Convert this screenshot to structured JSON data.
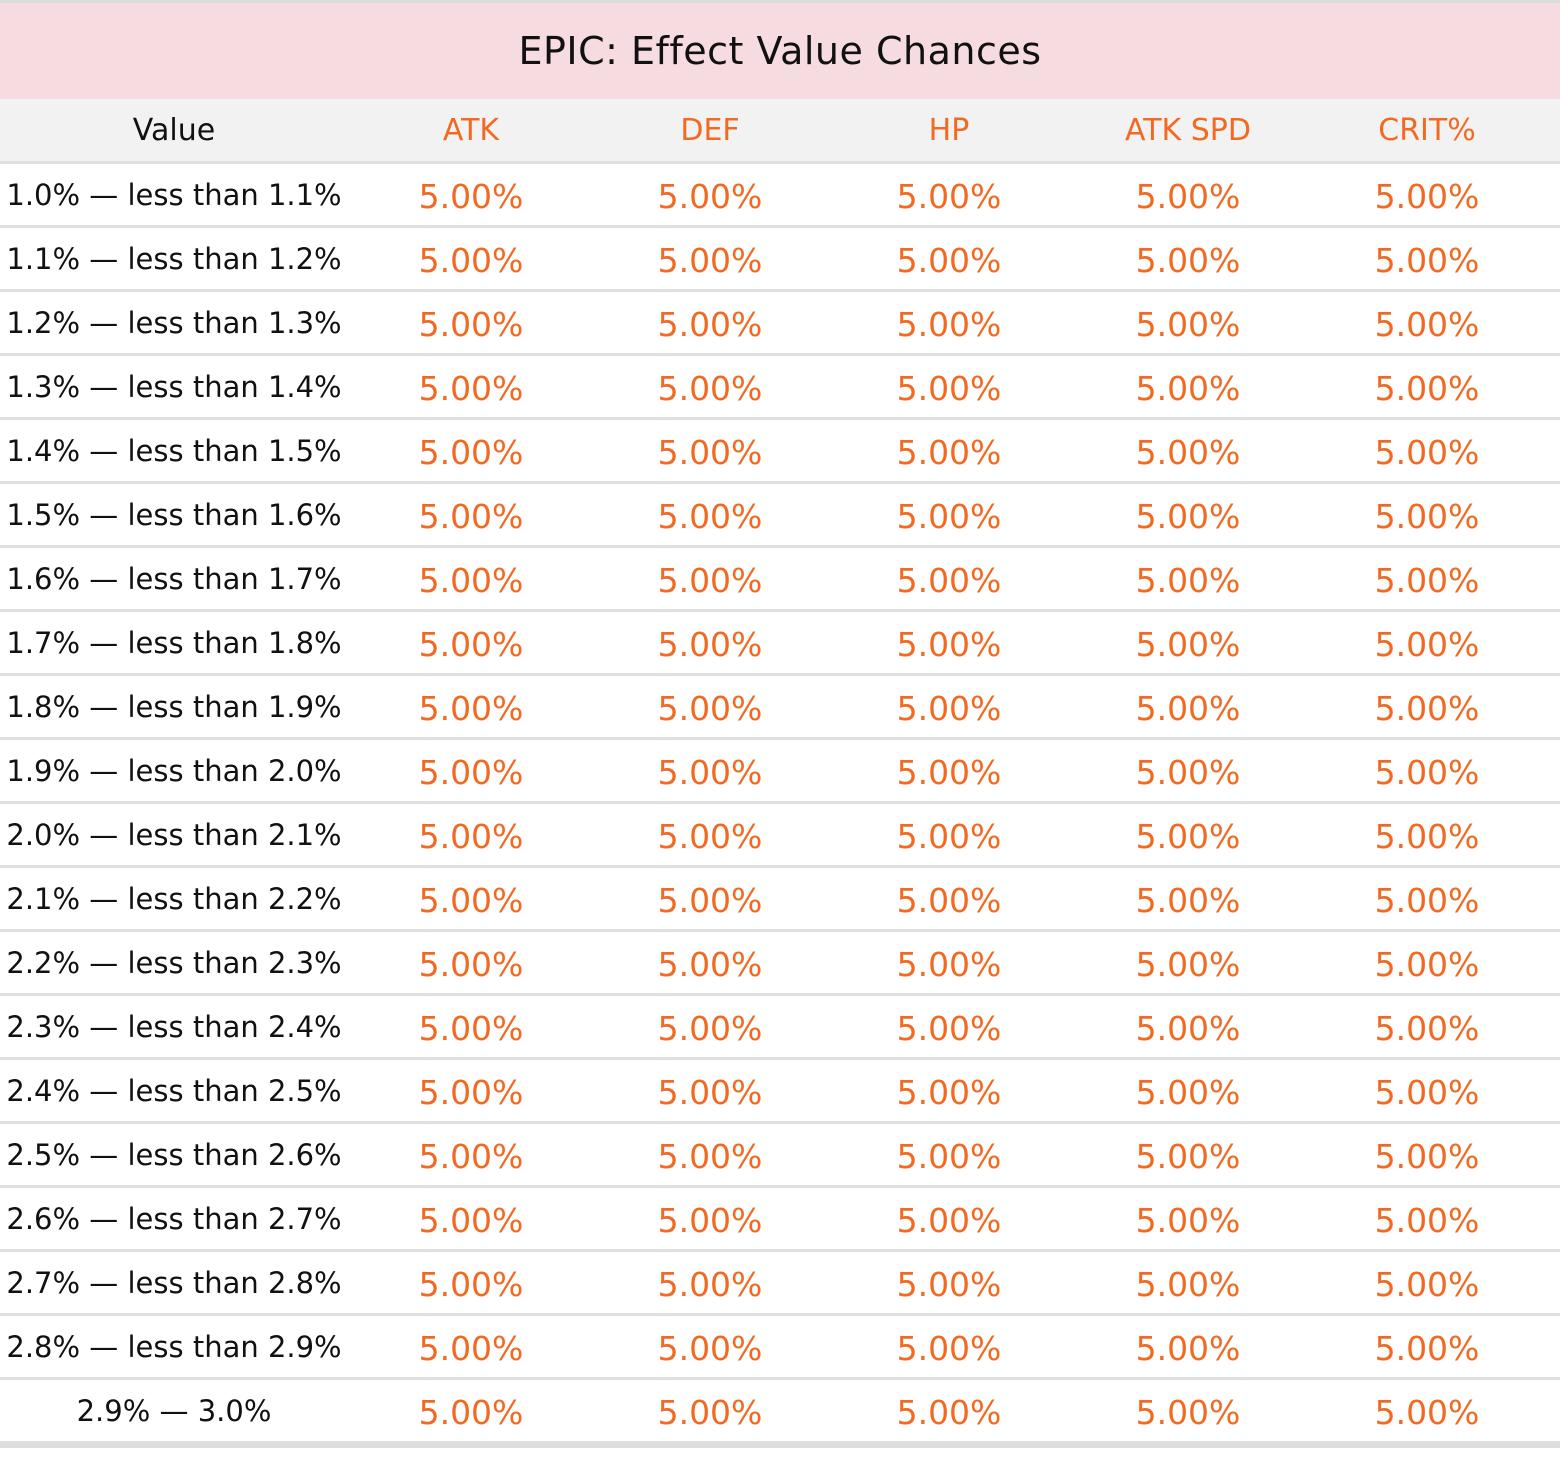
{
  "title": "EPIC: Effect Value Chances",
  "headers": {
    "value": "Value",
    "atk": "ATK",
    "def": "DEF",
    "hp": "HP",
    "atk_spd": "ATK SPD",
    "crit": "CRIT%"
  },
  "rows": [
    {
      "range": "1.0% — less than 1.1%",
      "atk": "5.00%",
      "def": "5.00%",
      "hp": "5.00%",
      "atk_spd": "5.00%",
      "crit": "5.00%"
    },
    {
      "range": "1.1% — less than 1.2%",
      "atk": "5.00%",
      "def": "5.00%",
      "hp": "5.00%",
      "atk_spd": "5.00%",
      "crit": "5.00%"
    },
    {
      "range": "1.2% — less than 1.3%",
      "atk": "5.00%",
      "def": "5.00%",
      "hp": "5.00%",
      "atk_spd": "5.00%",
      "crit": "5.00%"
    },
    {
      "range": "1.3% — less than 1.4%",
      "atk": "5.00%",
      "def": "5.00%",
      "hp": "5.00%",
      "atk_spd": "5.00%",
      "crit": "5.00%"
    },
    {
      "range": "1.4% — less than 1.5%",
      "atk": "5.00%",
      "def": "5.00%",
      "hp": "5.00%",
      "atk_spd": "5.00%",
      "crit": "5.00%"
    },
    {
      "range": "1.5% — less than 1.6%",
      "atk": "5.00%",
      "def": "5.00%",
      "hp": "5.00%",
      "atk_spd": "5.00%",
      "crit": "5.00%"
    },
    {
      "range": "1.6% — less than 1.7%",
      "atk": "5.00%",
      "def": "5.00%",
      "hp": "5.00%",
      "atk_spd": "5.00%",
      "crit": "5.00%"
    },
    {
      "range": "1.7% — less than 1.8%",
      "atk": "5.00%",
      "def": "5.00%",
      "hp": "5.00%",
      "atk_spd": "5.00%",
      "crit": "5.00%"
    },
    {
      "range": "1.8% — less than 1.9%",
      "atk": "5.00%",
      "def": "5.00%",
      "hp": "5.00%",
      "atk_spd": "5.00%",
      "crit": "5.00%"
    },
    {
      "range": "1.9% — less than 2.0%",
      "atk": "5.00%",
      "def": "5.00%",
      "hp": "5.00%",
      "atk_spd": "5.00%",
      "crit": "5.00%"
    },
    {
      "range": "2.0% — less than 2.1%",
      "atk": "5.00%",
      "def": "5.00%",
      "hp": "5.00%",
      "atk_spd": "5.00%",
      "crit": "5.00%"
    },
    {
      "range": "2.1% — less than 2.2%",
      "atk": "5.00%",
      "def": "5.00%",
      "hp": "5.00%",
      "atk_spd": "5.00%",
      "crit": "5.00%"
    },
    {
      "range": "2.2% — less than 2.3%",
      "atk": "5.00%",
      "def": "5.00%",
      "hp": "5.00%",
      "atk_spd": "5.00%",
      "crit": "5.00%"
    },
    {
      "range": "2.3% — less than 2.4%",
      "atk": "5.00%",
      "def": "5.00%",
      "hp": "5.00%",
      "atk_spd": "5.00%",
      "crit": "5.00%"
    },
    {
      "range": "2.4% — less than 2.5%",
      "atk": "5.00%",
      "def": "5.00%",
      "hp": "5.00%",
      "atk_spd": "5.00%",
      "crit": "5.00%"
    },
    {
      "range": "2.5% — less than 2.6%",
      "atk": "5.00%",
      "def": "5.00%",
      "hp": "5.00%",
      "atk_spd": "5.00%",
      "crit": "5.00%"
    },
    {
      "range": "2.6% — less than 2.7%",
      "atk": "5.00%",
      "def": "5.00%",
      "hp": "5.00%",
      "atk_spd": "5.00%",
      "crit": "5.00%"
    },
    {
      "range": "2.7% — less than 2.8%",
      "atk": "5.00%",
      "def": "5.00%",
      "hp": "5.00%",
      "atk_spd": "5.00%",
      "crit": "5.00%"
    },
    {
      "range": "2.8% — less than 2.9%",
      "atk": "5.00%",
      "def": "5.00%",
      "hp": "5.00%",
      "atk_spd": "5.00%",
      "crit": "5.00%"
    },
    {
      "range": "2.9% — 3.0%",
      "atk": "5.00%",
      "def": "5.00%",
      "hp": "5.00%",
      "atk_spd": "5.00%",
      "crit": "5.00%"
    }
  ],
  "colors": {
    "title_background": "#f6dbe0",
    "header_background": "#f2f2f2",
    "accent": "#f26a21",
    "text": "#111111",
    "rule": "#e0e0e0"
  }
}
